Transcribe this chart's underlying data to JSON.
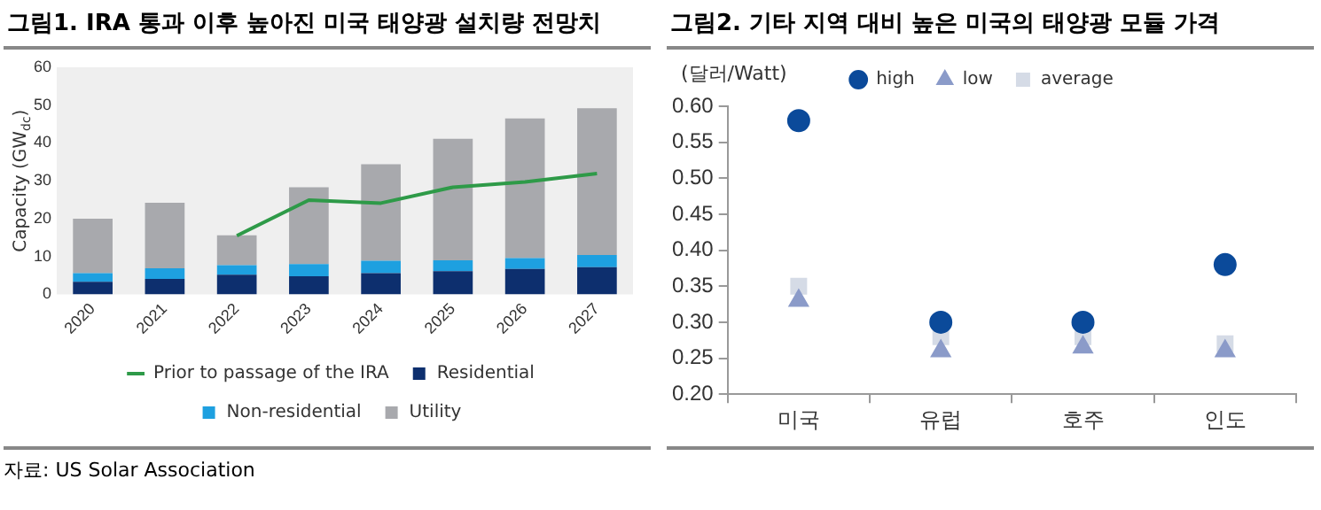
{
  "chart_data": [
    {
      "type": "bar",
      "title": "그림1. IRA 통과 이후 높아진 미국 태양광 설치량 전망치",
      "ylabel": "Capacity (GW$_{dc}$)",
      "stacked": true,
      "categories": [
        "2020",
        "2021",
        "2022",
        "2023",
        "2024",
        "2025",
        "2026",
        "2027"
      ],
      "series": [
        {
          "name": "Residential",
          "color": "#0d2f6e",
          "values": [
            3.3,
            4.1,
            5.2,
            4.8,
            5.6,
            6.1,
            6.7,
            7.2
          ]
        },
        {
          "name": "Non-residential",
          "color": "#1ea0e0",
          "values": [
            2.3,
            2.8,
            2.5,
            3.2,
            3.3,
            2.9,
            2.9,
            3.2
          ]
        },
        {
          "name": "Utility",
          "color": "#a8a9ad",
          "values": [
            14.4,
            17.3,
            7.9,
            20.3,
            25.5,
            32.1,
            36.9,
            38.8
          ]
        },
        {
          "name": "Prior to passage of the IRA",
          "type": "line",
          "color": "#2e9a48",
          "values": [
            null,
            null,
            15.5,
            24.9,
            24.1,
            28.3,
            29.7,
            31.9
          ]
        }
      ],
      "ylim": [
        0,
        60
      ],
      "yticks": [
        0,
        10,
        20,
        30,
        40,
        50,
        60
      ],
      "grid": false,
      "legend": "bottom",
      "annotations": [
        "자료: US Solar Association"
      ]
    },
    {
      "type": "scatter",
      "title": "그림2. 기타 지역 대비 높은 미국의 태양광 모듈 가격",
      "ylabel": "(달러/Watt)",
      "categories": [
        "미국",
        "유럽",
        "호주",
        "인도"
      ],
      "series": [
        {
          "name": "high",
          "color": "#0b4a9a",
          "marker": "circle",
          "values": [
            0.58,
            0.3,
            0.3,
            0.38
          ]
        },
        {
          "name": "low",
          "color": "#8b9bc9",
          "marker": "triangle",
          "values": [
            0.33,
            0.26,
            0.265,
            0.26
          ]
        },
        {
          "name": "average",
          "color": "#d5dbe6",
          "marker": "square",
          "values": [
            0.35,
            0.28,
            0.28,
            0.27
          ]
        }
      ],
      "ylim": [
        0.2,
        0.6
      ],
      "yticks": [
        {
          "value": 0.2,
          "label": "0.20"
        },
        {
          "value": 0.25,
          "label": "0.25"
        },
        {
          "value": 0.3,
          "label": "0.30"
        },
        {
          "value": 0.35,
          "label": "0.35"
        },
        {
          "value": 0.4,
          "label": "0.40"
        },
        {
          "value": 0.45,
          "label": "0.45"
        },
        {
          "value": 0.5,
          "label": "0.50"
        },
        {
          "value": 0.55,
          "label": "0.55"
        },
        {
          "value": 0.6,
          "label": "0.60"
        }
      ],
      "grid": false,
      "legend": "top"
    }
  ]
}
